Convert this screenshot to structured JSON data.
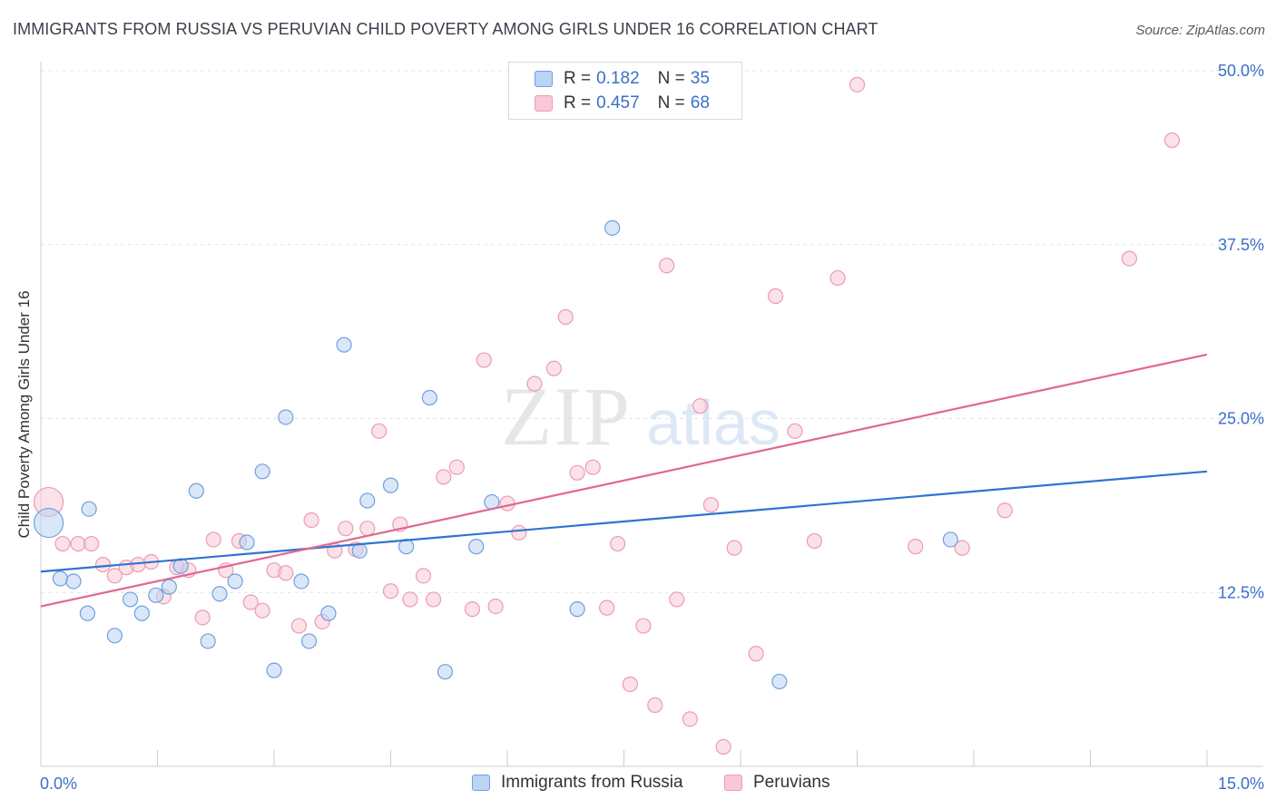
{
  "chart_data": {
    "type": "scatter",
    "title": "IMMIGRANTS FROM RUSSIA VS PERUVIAN CHILD POVERTY AMONG GIRLS UNDER 16 CORRELATION CHART",
    "source": "Source: ZipAtlas.com",
    "ylabel": "Child Poverty Among Girls Under 16",
    "xlabel": "",
    "xlim": [
      0,
      15
    ],
    "ylim": [
      0,
      50
    ],
    "x_tick_labels": [
      "0.0%",
      "15.0%"
    ],
    "y_ticks": [
      12.5,
      25.0,
      37.5,
      50.0
    ],
    "y_tick_labels": [
      "12.5%",
      "25.0%",
      "37.5%",
      "50.0%"
    ],
    "watermark": {
      "zip": "ZIP",
      "atlas": "atlas"
    },
    "legend": {
      "r_label": "R =",
      "n_label": "N =",
      "rows": [
        {
          "r": "0.182",
          "n": "35"
        },
        {
          "r": "0.457",
          "n": "68"
        }
      ]
    },
    "series": [
      {
        "name": "Immigrants from Russia",
        "color": "#6fa0dc",
        "fill": "#bcd4f4",
        "trend_color": "#2f74d0",
        "trend": {
          "x0": 0,
          "y0": 14.0,
          "x1": 15,
          "y1": 21.2
        },
        "points": [
          {
            "x": 0.1,
            "y": 17.5,
            "big": true
          },
          {
            "x": 0.25,
            "y": 13.5
          },
          {
            "x": 0.42,
            "y": 13.3
          },
          {
            "x": 0.62,
            "y": 18.5
          },
          {
            "x": 0.6,
            "y": 11.0
          },
          {
            "x": 0.95,
            "y": 9.4
          },
          {
            "x": 1.15,
            "y": 12.0
          },
          {
            "x": 1.3,
            "y": 11.0
          },
          {
            "x": 1.48,
            "y": 12.3
          },
          {
            "x": 1.65,
            "y": 12.9
          },
          {
            "x": 1.8,
            "y": 14.4
          },
          {
            "x": 2.0,
            "y": 19.8
          },
          {
            "x": 2.15,
            "y": 9.0
          },
          {
            "x": 2.3,
            "y": 12.4
          },
          {
            "x": 2.5,
            "y": 13.3
          },
          {
            "x": 2.65,
            "y": 16.1
          },
          {
            "x": 2.85,
            "y": 21.2
          },
          {
            "x": 3.0,
            "y": 6.9
          },
          {
            "x": 3.15,
            "y": 25.1
          },
          {
            "x": 3.35,
            "y": 13.3
          },
          {
            "x": 3.45,
            "y": 9.0
          },
          {
            "x": 3.7,
            "y": 11.0
          },
          {
            "x": 3.9,
            "y": 30.3
          },
          {
            "x": 4.1,
            "y": 15.5
          },
          {
            "x": 4.2,
            "y": 19.1
          },
          {
            "x": 4.5,
            "y": 20.2
          },
          {
            "x": 4.7,
            "y": 15.8
          },
          {
            "x": 5.0,
            "y": 26.5
          },
          {
            "x": 5.2,
            "y": 6.8
          },
          {
            "x": 5.6,
            "y": 15.8
          },
          {
            "x": 5.8,
            "y": 19.0
          },
          {
            "x": 6.9,
            "y": 11.3
          },
          {
            "x": 7.35,
            "y": 38.7
          },
          {
            "x": 9.5,
            "y": 6.1
          },
          {
            "x": 11.7,
            "y": 16.3
          }
        ]
      },
      {
        "name": "Peruvians",
        "color": "#ee9ab4",
        "fill": "#f8c8d6",
        "trend_color": "#e06890",
        "trend": {
          "x0": 0,
          "y0": 11.5,
          "x1": 15,
          "y1": 29.6
        },
        "points": [
          {
            "x": 0.1,
            "y": 19.0,
            "big": true
          },
          {
            "x": 0.28,
            "y": 16.0
          },
          {
            "x": 0.48,
            "y": 16.0
          },
          {
            "x": 0.65,
            "y": 16.0
          },
          {
            "x": 0.8,
            "y": 14.5
          },
          {
            "x": 0.95,
            "y": 13.7
          },
          {
            "x": 1.1,
            "y": 14.3
          },
          {
            "x": 1.25,
            "y": 14.5
          },
          {
            "x": 1.42,
            "y": 14.7
          },
          {
            "x": 1.58,
            "y": 12.2
          },
          {
            "x": 1.75,
            "y": 14.3
          },
          {
            "x": 1.9,
            "y": 14.1
          },
          {
            "x": 2.08,
            "y": 10.7
          },
          {
            "x": 2.22,
            "y": 16.3
          },
          {
            "x": 2.38,
            "y": 14.1
          },
          {
            "x": 2.55,
            "y": 16.2
          },
          {
            "x": 2.7,
            "y": 11.8
          },
          {
            "x": 2.85,
            "y": 11.2
          },
          {
            "x": 3.0,
            "y": 14.1
          },
          {
            "x": 3.15,
            "y": 13.9
          },
          {
            "x": 3.32,
            "y": 10.1
          },
          {
            "x": 3.48,
            "y": 17.7
          },
          {
            "x": 3.62,
            "y": 10.4
          },
          {
            "x": 3.78,
            "y": 15.5
          },
          {
            "x": 3.92,
            "y": 17.1
          },
          {
            "x": 4.05,
            "y": 15.6
          },
          {
            "x": 4.2,
            "y": 17.1
          },
          {
            "x": 4.35,
            "y": 24.1
          },
          {
            "x": 4.5,
            "y": 12.6
          },
          {
            "x": 4.62,
            "y": 17.4
          },
          {
            "x": 4.75,
            "y": 12.0
          },
          {
            "x": 4.92,
            "y": 13.7
          },
          {
            "x": 5.05,
            "y": 12.0
          },
          {
            "x": 5.18,
            "y": 20.8
          },
          {
            "x": 5.35,
            "y": 21.5
          },
          {
            "x": 5.55,
            "y": 11.3
          },
          {
            "x": 5.7,
            "y": 29.2
          },
          {
            "x": 5.85,
            "y": 11.5
          },
          {
            "x": 6.0,
            "y": 18.9
          },
          {
            "x": 6.15,
            "y": 16.8
          },
          {
            "x": 6.35,
            "y": 27.5
          },
          {
            "x": 6.6,
            "y": 28.6
          },
          {
            "x": 6.75,
            "y": 32.3
          },
          {
            "x": 6.9,
            "y": 21.1
          },
          {
            "x": 7.1,
            "y": 21.5
          },
          {
            "x": 7.28,
            "y": 11.4
          },
          {
            "x": 7.42,
            "y": 16.0
          },
          {
            "x": 7.58,
            "y": 5.9
          },
          {
            "x": 7.75,
            "y": 10.1
          },
          {
            "x": 7.9,
            "y": 4.4
          },
          {
            "x": 8.05,
            "y": 36.0
          },
          {
            "x": 8.18,
            "y": 12.0
          },
          {
            "x": 8.35,
            "y": 3.4
          },
          {
            "x": 8.48,
            "y": 25.9
          },
          {
            "x": 8.62,
            "y": 18.8
          },
          {
            "x": 8.78,
            "y": 1.4
          },
          {
            "x": 8.92,
            "y": 15.7
          },
          {
            "x": 9.2,
            "y": 8.1
          },
          {
            "x": 9.45,
            "y": 33.8
          },
          {
            "x": 9.7,
            "y": 24.1
          },
          {
            "x": 9.95,
            "y": 16.2
          },
          {
            "x": 10.25,
            "y": 35.1
          },
          {
            "x": 10.5,
            "y": 49.0
          },
          {
            "x": 11.25,
            "y": 15.8
          },
          {
            "x": 12.4,
            "y": 18.4
          },
          {
            "x": 14.0,
            "y": 36.5
          },
          {
            "x": 14.55,
            "y": 45.0
          },
          {
            "x": 11.85,
            "y": 15.7
          }
        ]
      }
    ]
  }
}
